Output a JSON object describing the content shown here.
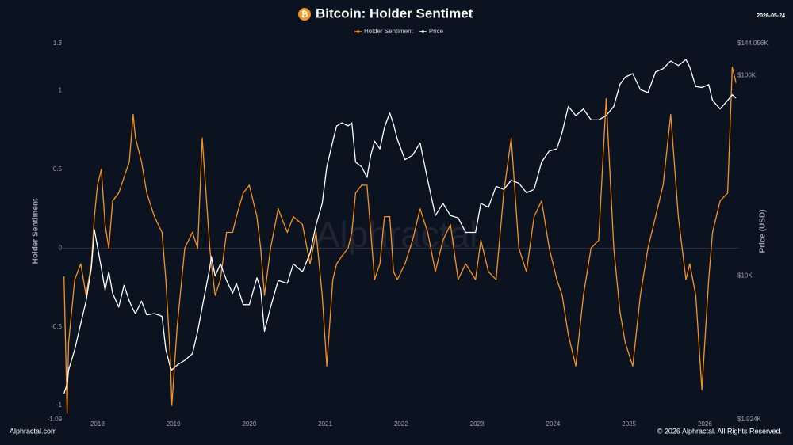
{
  "chart_data": {
    "type": "line",
    "title": "Bitcoin: Holder Sentimet",
    "date": "2026-05-24",
    "watermark": "Alphractal",
    "source": "Alphractal.com",
    "copyright": "© 2026 Alphractal. All Rights Reserved.",
    "y_label": "Holder Sentiment",
    "y2_label": "Price (USD)",
    "y2_log": true,
    "zero_line": true,
    "xlim": [
      2017.5,
      2026.45
    ],
    "xticks": [
      2018,
      2019,
      2020,
      2021,
      2022,
      2023,
      2024,
      2025,
      2026
    ],
    "ylim": [
      -1.09,
      1.3
    ],
    "yticks": [
      -1.09,
      -1,
      -0.5,
      0,
      0.5,
      1,
      1.3
    ],
    "y2lim": [
      1924,
      144056
    ],
    "y2ticks": [
      {
        "value": 1924,
        "label": "$1.924K"
      },
      {
        "value": 10000,
        "label": "$10K"
      },
      {
        "value": 100000,
        "label": "$100K"
      },
      {
        "value": 144056,
        "label": "$144.056K"
      }
    ],
    "x": [
      2017.56,
      2017.6,
      2017.62,
      2017.7,
      2017.78,
      2017.85,
      2017.92,
      2017.96,
      2018.0,
      2018.05,
      2018.1,
      2018.15,
      2018.2,
      2018.28,
      2018.35,
      2018.42,
      2018.47,
      2018.5,
      2018.58,
      2018.65,
      2018.75,
      2018.85,
      2018.9,
      2018.96,
      2018.98,
      2019.05,
      2019.15,
      2019.25,
      2019.32,
      2019.38,
      2019.48,
      2019.5,
      2019.55,
      2019.62,
      2019.7,
      2019.78,
      2019.83,
      2019.92,
      2020.0,
      2020.1,
      2020.15,
      2020.2,
      2020.28,
      2020.38,
      2020.5,
      2020.58,
      2020.7,
      2020.8,
      2020.88,
      2020.96,
      2021.02,
      2021.1,
      2021.15,
      2021.22,
      2021.3,
      2021.35,
      2021.4,
      2021.48,
      2021.55,
      2021.6,
      2021.65,
      2021.72,
      2021.78,
      2021.85,
      2021.9,
      2021.95,
      2022.05,
      2022.15,
      2022.25,
      2022.35,
      2022.45,
      2022.55,
      2022.65,
      2022.75,
      2022.85,
      2022.98,
      2023.05,
      2023.15,
      2023.25,
      2023.35,
      2023.45,
      2023.55,
      2023.65,
      2023.75,
      2023.85,
      2023.95,
      2024.05,
      2024.12,
      2024.2,
      2024.3,
      2024.4,
      2024.5,
      2024.6,
      2024.7,
      2024.8,
      2024.88,
      2024.95,
      2025.05,
      2025.15,
      2025.25,
      2025.35,
      2025.45,
      2025.55,
      2025.65,
      2025.75,
      2025.8,
      2025.88,
      2025.96,
      2026.05,
      2026.1,
      2026.2,
      2026.3,
      2026.36,
      2026.41
    ],
    "series": [
      {
        "name": "Holder Sentiment",
        "color": "#f7931a",
        "axis": "y",
        "values": [
          -0.18,
          -1.05,
          -0.6,
          -0.2,
          -0.1,
          -0.3,
          -0.1,
          0.2,
          0.4,
          0.5,
          0.15,
          0.0,
          0.3,
          0.35,
          0.45,
          0.55,
          0.85,
          0.7,
          0.55,
          0.35,
          0.2,
          0.1,
          -0.2,
          -0.7,
          -1.0,
          -0.5,
          0.0,
          0.1,
          0.0,
          0.7,
          0.0,
          -0.1,
          -0.3,
          -0.2,
          0.1,
          0.1,
          0.2,
          0.35,
          0.4,
          0.2,
          0.0,
          -0.3,
          0.0,
          0.25,
          0.1,
          0.2,
          0.15,
          -0.1,
          0.1,
          -0.3,
          -0.75,
          -0.2,
          -0.1,
          -0.05,
          0.0,
          0.1,
          0.35,
          0.4,
          0.4,
          0.1,
          -0.2,
          -0.1,
          0.2,
          0.2,
          -0.15,
          -0.2,
          -0.1,
          0.05,
          0.25,
          0.1,
          -0.15,
          0.05,
          0.15,
          -0.2,
          -0.1,
          -0.2,
          0.05,
          -0.15,
          -0.2,
          0.35,
          0.7,
          0.0,
          -0.15,
          0.2,
          0.3,
          0.0,
          -0.2,
          -0.3,
          -0.55,
          -0.75,
          -0.3,
          0.0,
          0.05,
          0.95,
          0.0,
          -0.4,
          -0.6,
          -0.75,
          -0.3,
          0.0,
          0.2,
          0.4,
          0.85,
          0.2,
          -0.2,
          -0.1,
          -0.3,
          -0.9,
          -0.2,
          0.1,
          0.3,
          0.35,
          1.15,
          1.05
        ]
      },
      {
        "name": "Price",
        "color": "#ffffff",
        "axis": "y2",
        "values": [
          2600,
          2900,
          3400,
          4300,
          5800,
          7500,
          11000,
          17000,
          14000,
          11000,
          8500,
          10500,
          8200,
          7000,
          9000,
          7500,
          6800,
          6500,
          7500,
          6400,
          6500,
          6300,
          4300,
          3500,
          3400,
          3600,
          3800,
          4100,
          5300,
          7000,
          11000,
          12500,
          10000,
          11500,
          9500,
          8200,
          9200,
          7200,
          7200,
          9800,
          8600,
          5300,
          7000,
          9500,
          9200,
          11500,
          10500,
          13000,
          18000,
          23000,
          35000,
          47000,
          56000,
          58000,
          56000,
          58000,
          37000,
          35000,
          31000,
          40000,
          47000,
          43000,
          55000,
          65000,
          57000,
          48000,
          38000,
          40000,
          46000,
          30000,
          20000,
          23000,
          20000,
          19500,
          16500,
          16500,
          23000,
          22000,
          28000,
          27000,
          30000,
          29000,
          26000,
          27000,
          37000,
          42000,
          43000,
          52000,
          70000,
          63000,
          68000,
          60000,
          60000,
          63000,
          70000,
          90000,
          98000,
          102000,
          85000,
          82000,
          104000,
          108000,
          118000,
          112000,
          120000,
          110000,
          88000,
          87000,
          90000,
          75000,
          68000,
          75000,
          80000,
          77000
        ]
      }
    ]
  }
}
